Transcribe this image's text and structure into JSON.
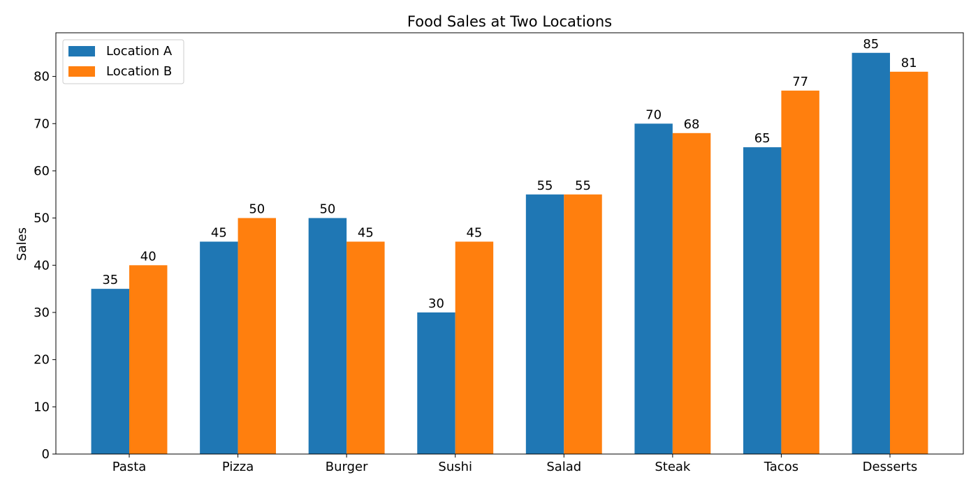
{
  "chart_data": {
    "type": "bar",
    "title": "Food Sales at Two Locations",
    "xlabel": "",
    "ylabel": "Sales",
    "categories": [
      "Pasta",
      "Pizza",
      "Burger",
      "Sushi",
      "Salad",
      "Steak",
      "Tacos",
      "Desserts"
    ],
    "series": [
      {
        "name": "Location A",
        "color": "#1f77b4",
        "values": [
          35,
          45,
          50,
          30,
          55,
          70,
          65,
          85
        ]
      },
      {
        "name": "Location B",
        "color": "#ff7f0e",
        "values": [
          40,
          50,
          45,
          45,
          55,
          68,
          77,
          81
        ]
      }
    ],
    "ylim": [
      0,
      89.25
    ],
    "yticks": [
      0,
      10,
      20,
      30,
      40,
      50,
      60,
      70,
      80
    ],
    "grid": false,
    "legend_position": "top-left",
    "data_labels": true
  }
}
